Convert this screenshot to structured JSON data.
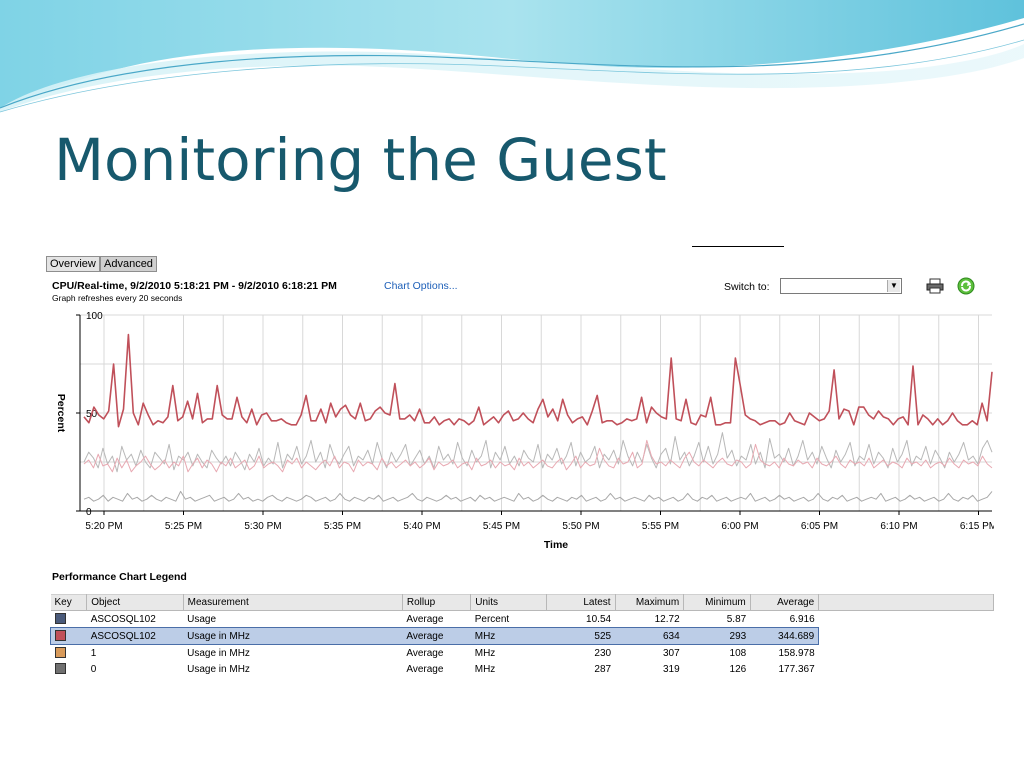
{
  "slide": {
    "title": "Monitoring the Guest"
  },
  "tabs": [
    {
      "label": "Overview"
    },
    {
      "label": "Advanced"
    }
  ],
  "chart_header": {
    "heading": "CPU/Real-time, 9/2/2010 5:18:21 PM - 9/2/2010 6:18:21 PM",
    "options_link": "Chart Options...",
    "refresh_note": "Graph refreshes every 20 seconds",
    "switch_label": "Switch to:",
    "switch_value": ""
  },
  "icons": {
    "print": "printer-icon",
    "refresh": "refresh-icon"
  },
  "chart_data": {
    "type": "line",
    "ylabel": "Percent",
    "xlabel": "Time",
    "ylim": [
      0,
      100
    ],
    "yticks": [
      0,
      50,
      100
    ],
    "xticks": [
      "5:20 PM",
      "5:25 PM",
      "5:30 PM",
      "5:35 PM",
      "5:40 PM",
      "5:45 PM",
      "5:50 PM",
      "5:55 PM",
      "6:00 PM",
      "6:05 PM",
      "6:10 PM",
      "6:15 PM"
    ],
    "grid": true,
    "series": [
      {
        "color": "#c0505a",
        "values": [
          48,
          45,
          53,
          49,
          47,
          51,
          75,
          43,
          52,
          90,
          50,
          44,
          55,
          49,
          44,
          46,
          45,
          48,
          64,
          46,
          48,
          56,
          47,
          60,
          45,
          47,
          47,
          64,
          49,
          47,
          47,
          58,
          48,
          45,
          52,
          44,
          49,
          50,
          46,
          46,
          47,
          45,
          44,
          44,
          49,
          59,
          46,
          46,
          52,
          45,
          55,
          48,
          52,
          54,
          49,
          47,
          55,
          46,
          47,
          51,
          53,
          50,
          49,
          65,
          47,
          47,
          49,
          46,
          52,
          45,
          45,
          48,
          44,
          46,
          47,
          44,
          47,
          46,
          44,
          46,
          53,
          44,
          46,
          48,
          45,
          49,
          51,
          46,
          47,
          50,
          47,
          45,
          52,
          57,
          48,
          52,
          46,
          57,
          49,
          45,
          47,
          48,
          44,
          51,
          59,
          45,
          46,
          46,
          44,
          45,
          47,
          46,
          47,
          58,
          45,
          53,
          50,
          48,
          47,
          78,
          47,
          46,
          57,
          45,
          44,
          49,
          48,
          58,
          44,
          44,
          45,
          45,
          78,
          64,
          49,
          47,
          46,
          44,
          45,
          46,
          46,
          44,
          45,
          50,
          46,
          45,
          44,
          50,
          48,
          46,
          47,
          51,
          72,
          47,
          52,
          51,
          44,
          53,
          53,
          49,
          47,
          51,
          48,
          47,
          44,
          47,
          48,
          44,
          74,
          44,
          49,
          47,
          44,
          47,
          44,
          46,
          50,
          46,
          44,
          44,
          46,
          44,
          55,
          46,
          71
        ]
      },
      {
        "color": "#e8a9b2",
        "values": [
          24,
          26,
          22,
          29,
          23,
          24,
          20,
          27,
          22,
          26,
          20,
          23,
          25,
          28,
          24,
          21,
          23,
          26,
          22,
          25,
          23,
          28,
          20,
          24,
          27,
          22,
          26,
          24,
          20,
          25,
          23,
          27,
          22,
          24,
          26,
          21,
          23,
          28,
          22,
          24,
          25,
          23,
          20,
          26,
          24,
          27,
          22,
          25,
          23,
          21,
          24,
          26,
          23,
          28,
          22,
          25,
          24,
          20,
          26,
          23,
          25,
          24,
          21,
          27,
          23,
          25,
          22,
          24,
          26,
          23,
          25,
          22,
          24,
          27,
          21,
          25,
          23,
          24,
          26,
          22,
          24,
          25,
          21,
          27,
          23,
          24,
          26,
          22,
          25,
          23,
          24,
          21,
          27,
          23,
          25,
          22,
          24,
          26,
          23,
          22,
          25,
          27,
          21,
          24,
          28,
          22,
          25,
          23,
          24,
          32,
          26,
          23,
          22,
          27,
          24,
          25,
          30,
          22,
          24,
          36,
          28,
          24,
          25,
          23,
          26,
          24,
          22,
          27,
          30,
          25,
          23,
          26,
          24,
          22,
          25,
          27,
          24,
          23,
          26,
          25,
          22,
          24,
          34,
          26,
          24,
          23,
          25,
          22,
          27,
          24,
          23,
          26,
          24,
          25,
          22,
          27,
          24,
          23,
          25,
          28,
          24,
          22,
          26,
          24,
          25,
          23,
          27,
          22,
          24,
          26,
          23,
          25,
          24,
          22,
          27,
          24,
          25,
          23,
          26,
          22,
          24,
          25,
          23,
          27,
          24,
          22,
          26,
          24,
          25,
          23,
          28,
          24,
          22
        ]
      },
      {
        "color": "#b8b8b8",
        "values": [
          25,
          30,
          27,
          22,
          32,
          24,
          28,
          20,
          33,
          26,
          29,
          23,
          31,
          25,
          22,
          30,
          27,
          24,
          34,
          21,
          28,
          26,
          30,
          23,
          29,
          25,
          22,
          31,
          27,
          24,
          28,
          23,
          30,
          26,
          21,
          29,
          25,
          32,
          23,
          27,
          24,
          35,
          22,
          29,
          26,
          33,
          24,
          28,
          36,
          25,
          30,
          22,
          34,
          27,
          24,
          29,
          33,
          23,
          28,
          26,
          31,
          24,
          35,
          27,
          22,
          30,
          25,
          29,
          34,
          23,
          27,
          31,
          24,
          28,
          22,
          33,
          26,
          29,
          24,
          35,
          27,
          23,
          31,
          25,
          28,
          36,
          22,
          30,
          26,
          33,
          24,
          28,
          23,
          31,
          27,
          25,
          34,
          22,
          29,
          26,
          32,
          24,
          28,
          35,
          23,
          30,
          25,
          27,
          33,
          22,
          29,
          26,
          31,
          24,
          36,
          28,
          23,
          30,
          25,
          34,
          27,
          22,
          29,
          32,
          24,
          38,
          26,
          30,
          23,
          28,
          35,
          25,
          33,
          24,
          29,
          40,
          27,
          31,
          23,
          28,
          26,
          34,
          24,
          30,
          22,
          37,
          27,
          29,
          25,
          32,
          23,
          28,
          36,
          26,
          30,
          24,
          33,
          27,
          22,
          31,
          25,
          29,
          35,
          23,
          28,
          26,
          34,
          24,
          30,
          27,
          22,
          32,
          25,
          29,
          36,
          23,
          28,
          26,
          33,
          24,
          31,
          27,
          22,
          30,
          25,
          29,
          35,
          26,
          28,
          24,
          32,
          36,
          30
        ]
      },
      {
        "color": "#a8a8a8",
        "values": [
          6,
          7,
          5,
          6,
          8,
          5,
          7,
          6,
          5,
          9,
          6,
          7,
          5,
          6,
          8,
          6,
          5,
          7,
          6,
          5,
          10,
          6,
          7,
          5,
          6,
          7,
          8,
          5,
          6,
          7,
          5,
          6,
          9,
          6,
          7,
          5,
          6,
          5,
          7,
          8,
          6,
          5,
          7,
          6,
          5,
          6,
          8,
          7,
          5,
          6,
          7,
          5,
          6,
          9,
          6,
          5,
          7,
          6,
          5,
          7,
          6,
          8,
          5,
          6,
          7,
          5,
          6,
          7,
          9,
          6,
          5,
          7,
          6,
          5,
          6,
          8,
          6,
          7,
          5,
          6,
          7,
          5,
          8,
          6,
          7,
          5,
          6,
          7,
          6,
          5,
          9,
          6,
          7,
          5,
          6,
          8,
          6,
          5,
          7,
          6,
          5,
          7,
          6,
          8,
          5,
          6,
          7,
          5,
          6,
          9,
          6,
          7,
          5,
          6,
          7,
          6,
          5,
          8,
          6,
          7,
          5,
          6,
          7,
          5,
          6,
          9,
          6,
          5,
          7,
          6,
          8,
          5,
          6,
          7,
          5,
          6,
          7,
          6,
          9,
          5,
          6,
          7,
          5,
          6,
          8,
          6,
          7,
          5,
          6,
          7,
          5,
          6,
          9,
          6,
          5,
          7,
          6,
          8,
          5,
          6,
          7,
          5,
          6,
          7,
          6,
          9,
          5,
          6,
          7,
          5,
          6,
          8,
          6,
          7,
          5,
          6,
          7,
          5,
          6,
          9,
          6,
          5,
          7,
          6,
          8,
          5,
          6,
          7,
          10
        ]
      }
    ]
  },
  "legend": {
    "title": "Performance Chart Legend",
    "columns": [
      "Key",
      "Object",
      "Measurement",
      "Rollup",
      "Units",
      "Latest",
      "Maximum",
      "Minimum",
      "Average"
    ],
    "rows": [
      {
        "key_color": "#4a5a7a",
        "object": "ASCOSQL102",
        "measurement": "Usage",
        "rollup": "Average",
        "units": "Percent",
        "latest": "10.54",
        "maximum": "12.72",
        "minimum": "5.87",
        "average": "6.916",
        "selected": false
      },
      {
        "key_color": "#c0505a",
        "object": "ASCOSQL102",
        "measurement": "Usage in MHz",
        "rollup": "Average",
        "units": "MHz",
        "latest": "525",
        "maximum": "634",
        "minimum": "293",
        "average": "344.689",
        "selected": true
      },
      {
        "key_color": "#d89a5a",
        "object": "1",
        "measurement": "Usage in MHz",
        "rollup": "Average",
        "units": "MHz",
        "latest": "230",
        "maximum": "307",
        "minimum": "108",
        "average": "158.978",
        "selected": false
      },
      {
        "key_color": "#707070",
        "object": "0",
        "measurement": "Usage in MHz",
        "rollup": "Average",
        "units": "MHz",
        "latest": "287",
        "maximum": "319",
        "minimum": "126",
        "average": "177.367",
        "selected": false
      }
    ]
  }
}
